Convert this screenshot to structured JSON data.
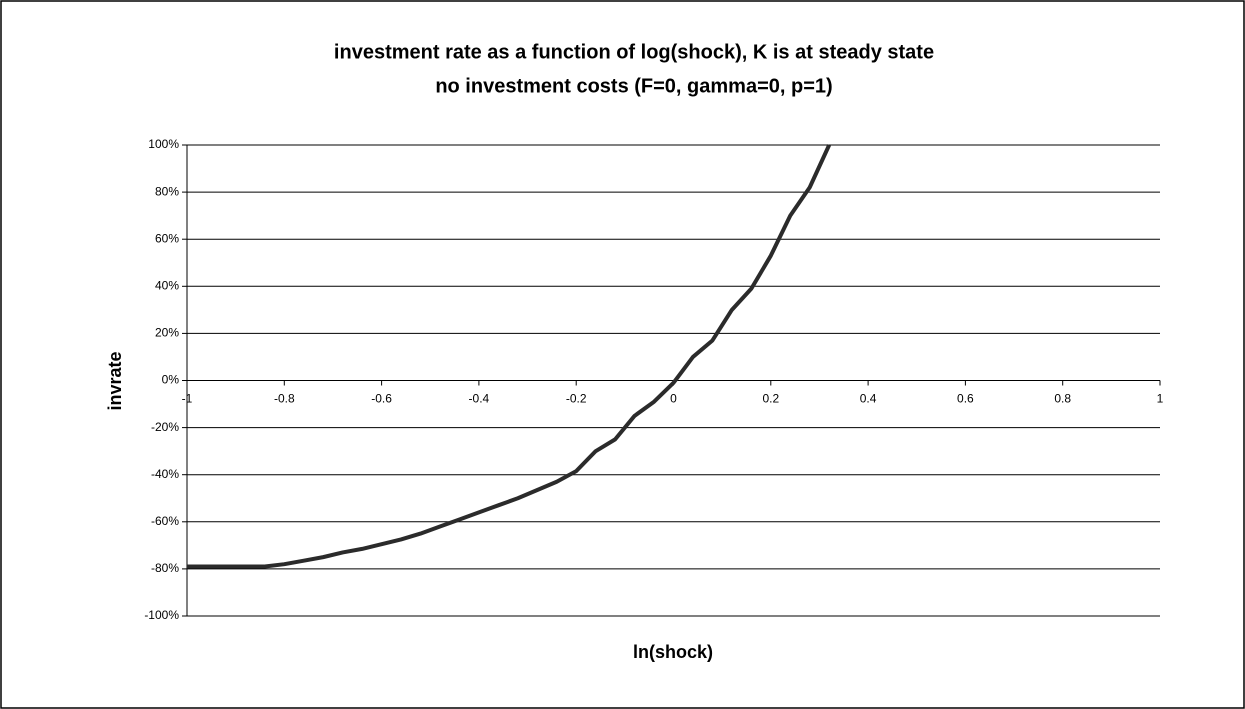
{
  "chart_data": {
    "type": "line",
    "title": [
      "investment rate as a function of log(shock), K is at steady state",
      "no investment costs (F=0, gamma=0, p=1)"
    ],
    "x_label": "ln(shock)",
    "y_label": "invrate",
    "xlim": [
      -1,
      1
    ],
    "xticks": [
      -1,
      -0.8,
      -0.6,
      -0.4,
      -0.2,
      0,
      0.2,
      0.4,
      0.6,
      0.8,
      1
    ],
    "ylim": [
      -100,
      100
    ],
    "yticks": [
      {
        "value": -100,
        "label": "-100%"
      },
      {
        "value": -80,
        "label": "-80%"
      },
      {
        "value": -60,
        "label": "-60%"
      },
      {
        "value": -40,
        "label": "-40%"
      },
      {
        "value": -20,
        "label": "-20%"
      },
      {
        "value": 0,
        "label": "0%"
      },
      {
        "value": 20,
        "label": "20%"
      },
      {
        "value": 40,
        "label": "40%"
      },
      {
        "value": 60,
        "label": "60%"
      },
      {
        "value": 80,
        "label": "80%"
      },
      {
        "value": 100,
        "label": "100%"
      }
    ],
    "grid": true,
    "series": [
      {
        "color": "#2b2b2b",
        "x": [
          -1,
          -0.96,
          -0.92,
          -0.88,
          -0.84,
          -0.8,
          -0.76,
          -0.72,
          -0.68,
          -0.64,
          -0.6,
          -0.56,
          -0.52,
          -0.48,
          -0.44,
          -0.4,
          -0.36,
          -0.32,
          -0.28,
          -0.24,
          -0.2,
          -0.16,
          -0.12,
          -0.08,
          -0.04,
          0,
          0.04,
          0.08,
          0.12,
          0.16,
          0.2,
          0.24,
          0.28,
          0.32
        ],
        "values": [
          -79,
          -79,
          -79,
          -79,
          -79,
          -78,
          -76.5,
          -75,
          -73,
          -71.5,
          -69.5,
          -67.5,
          -65,
          -62,
          -59,
          -56,
          -53,
          -50,
          -46.5,
          -43,
          -38.5,
          -30,
          -25,
          -15,
          -9,
          -1,
          10,
          17,
          30,
          39,
          53,
          70,
          82,
          100
        ]
      }
    ]
  }
}
